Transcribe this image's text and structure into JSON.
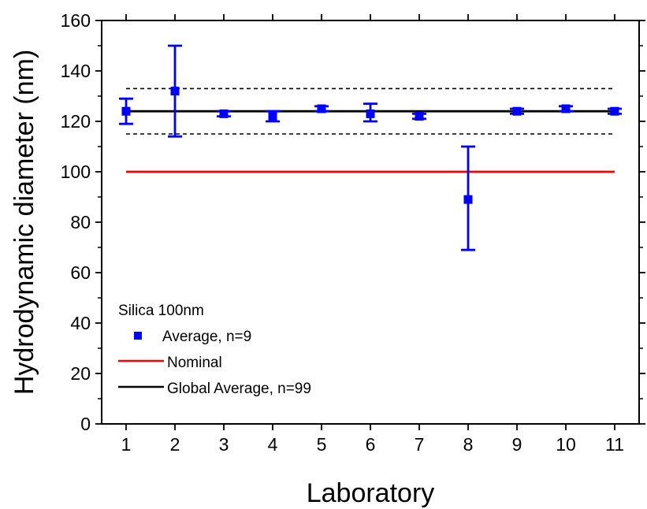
{
  "chart_data": {
    "type": "scatter",
    "xlabel": "Laboratory",
    "ylabel": "Hydrodynamic diameter (nm)",
    "xlim": [
      0.5,
      11.5
    ],
    "ylim": [
      0,
      160
    ],
    "x_ticks": [
      "1",
      "2",
      "3",
      "4",
      "5",
      "6",
      "7",
      "8",
      "9",
      "10",
      "11"
    ],
    "y_ticks": [
      "0",
      "20",
      "40",
      "60",
      "80",
      "100",
      "120",
      "140",
      "160"
    ],
    "legend": {
      "title": "Silica 100nm",
      "placement": "lower-left",
      "entries": [
        "Average, n=9",
        "Nominal",
        "Global Average, n=99"
      ]
    },
    "series": [
      {
        "name": "Average, n=9",
        "color": "#0000ff",
        "marker": "square",
        "x": [
          1,
          2,
          3,
          4,
          5,
          6,
          7,
          8,
          9,
          10,
          11
        ],
        "y": [
          124,
          132,
          123,
          122,
          125,
          123,
          122,
          89,
          124,
          125,
          124
        ],
        "err_low": [
          119,
          114,
          122,
          120,
          124,
          120,
          121,
          69,
          123,
          124,
          123
        ],
        "err_high": [
          129,
          150,
          124,
          124,
          126,
          127,
          123,
          110,
          125,
          126,
          125
        ]
      }
    ],
    "lines": [
      {
        "name": "Nominal",
        "y": 100,
        "color": "#ff0000",
        "style": "solid"
      },
      {
        "name": "Global Average, n=99",
        "y": 124,
        "color": "#000000",
        "style": "solid"
      },
      {
        "name": "upper bound",
        "y": 133,
        "color": "#000000",
        "style": "dashed"
      },
      {
        "name": "lower bound",
        "y": 115,
        "color": "#000000",
        "style": "dashed"
      }
    ],
    "grid": false
  }
}
